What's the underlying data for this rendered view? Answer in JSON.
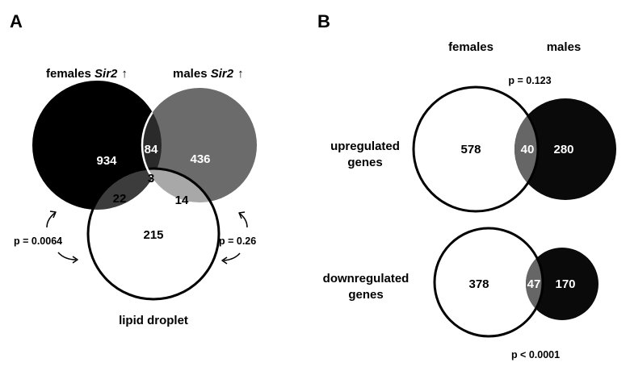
{
  "panel_a": {
    "letter": "A",
    "set_females_label": "females ",
    "set_females_gene": "Sir2",
    "set_males_label": "males ",
    "set_males_gene": "Sir2",
    "up_arrow": "↑",
    "set_lipid_label": "lipid droplet",
    "counts": {
      "females_only": "934",
      "males_only": "436",
      "females_males": "84",
      "all_three": "3",
      "females_lipid": "22",
      "males_lipid": "14",
      "lipid_only": "215"
    },
    "p_left": "p = 0.0064",
    "p_right": "p = 0.26"
  },
  "panel_b": {
    "letter": "B",
    "header_females": "females",
    "header_males": "males",
    "up_label_line1": "upregulated",
    "up_label_line2": "genes",
    "up_p": "p = 0.123",
    "up_counts": {
      "females_only": "578",
      "overlap": "40",
      "males_only": "280"
    },
    "down_label_line1": "downregulated",
    "down_label_line2": "genes",
    "down_p": "p < 0.0001",
    "down_counts": {
      "females_only": "378",
      "overlap": "47",
      "males_only": "170"
    }
  },
  "colors": {
    "female_fill": "#000000",
    "male_fill": "#6b6b6b",
    "lipid_fill": "#ffffff",
    "female_male_overlap": "#2a2a2a",
    "female_lipid_overlap": "#3c3c3c",
    "male_lipid_overlap": "#a8a8a8",
    "b_overlap": "#666666",
    "b_male_fill": "#0a0a0a"
  }
}
